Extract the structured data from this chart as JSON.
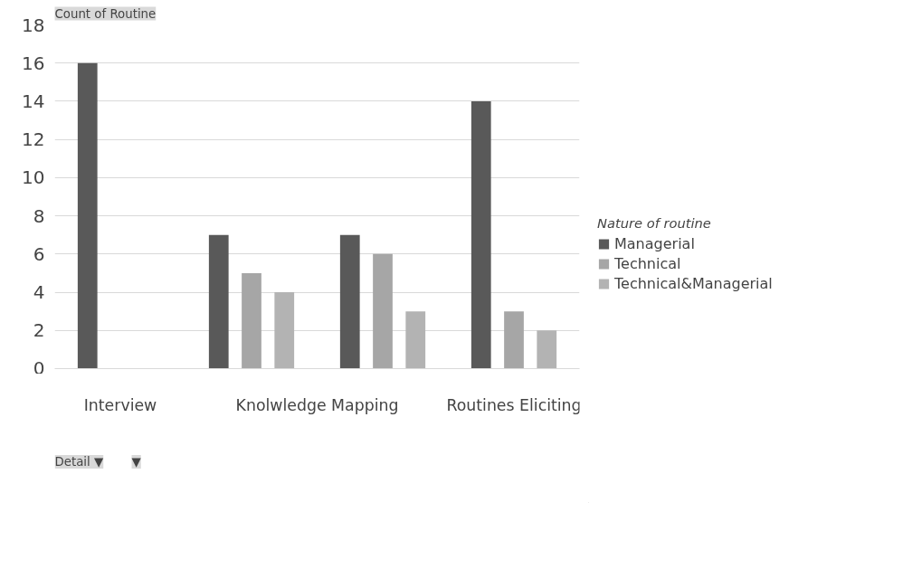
{
  "chart_data": {
    "type": "bar",
    "ylabel": "Count of Routine",
    "legend_title": "Nature of routine",
    "categories": [
      null,
      null,
      null,
      null
    ],
    "series": [
      {
        "name": "Managerial",
        "color": "#595959",
        "values": [
          16,
          7,
          7,
          14
        ]
      },
      {
        "name": "Technical",
        "color": "#a6a6a6",
        "values": [
          null,
          5,
          6,
          3
        ]
      },
      {
        "name": "Technical&Managerial",
        "color": "#b3b3b3",
        "values": [
          null,
          4,
          3,
          2
        ]
      }
    ],
    "annotations": [
      "Interview",
      "Knolwledge Mapping",
      "Routines Eliciting",
      "Detail ▼",
      "▼"
    ],
    "ylim": [
      0,
      18
    ],
    "yticks": [
      0,
      2,
      4,
      6,
      8,
      10,
      12,
      14,
      16,
      18
    ],
    "grid": "y",
    "legend": "right"
  }
}
